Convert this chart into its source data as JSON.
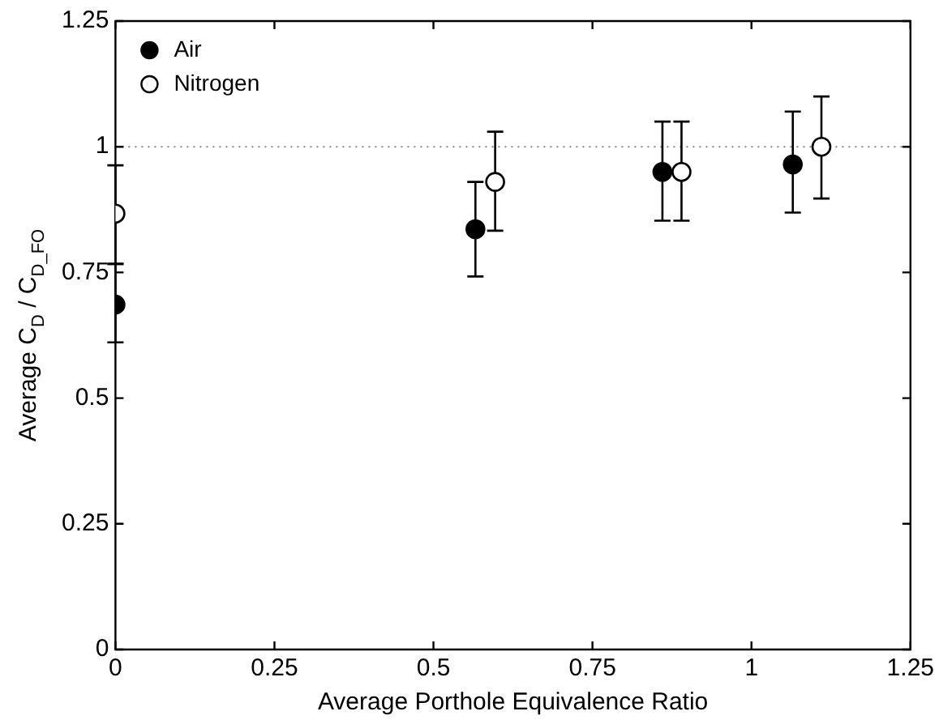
{
  "chart_data": {
    "type": "scatter",
    "xlabel": "Average Porthole Equivalence Ratio",
    "ylabel": "Average C$_{D}$ / C$_{D_FO}$",
    "series": [
      {
        "name": "Air",
        "color": "#000000",
        "x": [
          0,
          0.566,
          0.86,
          1.065
        ],
        "values": [
          0.686,
          0.836,
          0.95,
          0.965
        ],
        "errors": [
          [
            0.611,
            0.767
          ],
          [
            0.742,
            0.93
          ],
          [
            0.853,
            1.05
          ],
          [
            0.869,
            1.07
          ]
        ]
      },
      {
        "name": "Nitrogen",
        "color": "#ffffff",
        "x": [
          0,
          0.597,
          0.89,
          1.11
        ],
        "values": [
          0.867,
          0.93,
          0.95,
          1.0
        ],
        "errors": [
          [
            0.767,
            0.963
          ],
          [
            0.833,
            1.03
          ],
          [
            0.853,
            1.05
          ],
          [
            0.897,
            1.1
          ]
        ]
      }
    ],
    "xlim": [
      0,
      1.25
    ],
    "xticks": [
      0,
      0.25,
      0.5,
      0.75,
      1,
      1.25
    ],
    "ylim": [
      0,
      1.25
    ],
    "yticks": [
      0,
      0.25,
      0.5,
      0.75,
      1,
      1.25
    ],
    "ref_lines": [
      {
        "axis": "y",
        "value": 1,
        "color": "#808080",
        "line_style": "dotted"
      }
    ],
    "grid": false,
    "legend": "top left",
    "marker": "circle"
  }
}
